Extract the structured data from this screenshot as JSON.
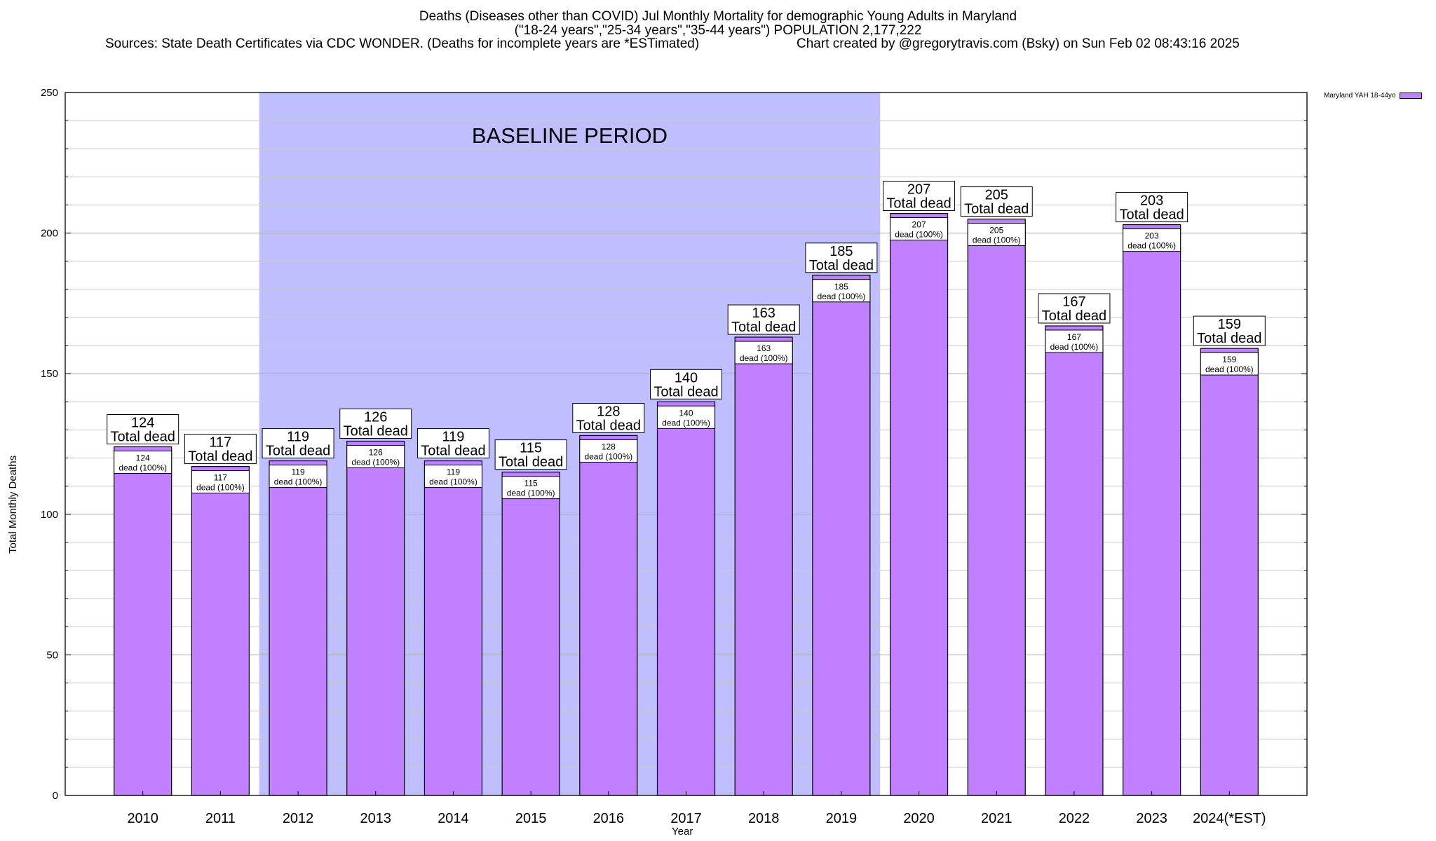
{
  "chart_data": {
    "type": "bar",
    "title_lines": [
      "Deaths (Diseases other than COVID) Jul Monthly Mortality for demographic Young Adults in Maryland",
      "(\"18-24 years\",\"25-34 years\",\"35-44 years\") POPULATION 2,177,222"
    ],
    "sources": "Sources: State Death Certificates via CDC WONDER. (Deaths for incomplete years are *ESTimated)",
    "credit": "Chart created by @gregorytravis.com (Bsky) on Sun Feb 02 08:43:16 2025",
    "xlabel": "Year",
    "ylabel": "Total Monthly Deaths",
    "ylim": [
      0,
      250
    ],
    "yticks": [
      0,
      50,
      100,
      150,
      200,
      250
    ],
    "grid": true,
    "legend_position": "top-right",
    "categories": [
      "2010",
      "2011",
      "2012",
      "2013",
      "2014",
      "2015",
      "2016",
      "2017",
      "2018",
      "2019",
      "2020",
      "2021",
      "2022",
      "2023",
      "2024(*EST)"
    ],
    "series": [
      {
        "name": "Maryland YAH 18-44yo",
        "color": "#c080ff",
        "values": [
          124,
          117,
          119,
          126,
          119,
          115,
          128,
          140,
          163,
          185,
          207,
          205,
          167,
          203,
          159
        ]
      }
    ],
    "bar_label_top": "Total dead",
    "bar_label_inner": "dead (100%)",
    "baseline": {
      "label": "BASELINE PERIOD",
      "from": "2012",
      "to": "2019",
      "color": "#bfbfff"
    }
  }
}
